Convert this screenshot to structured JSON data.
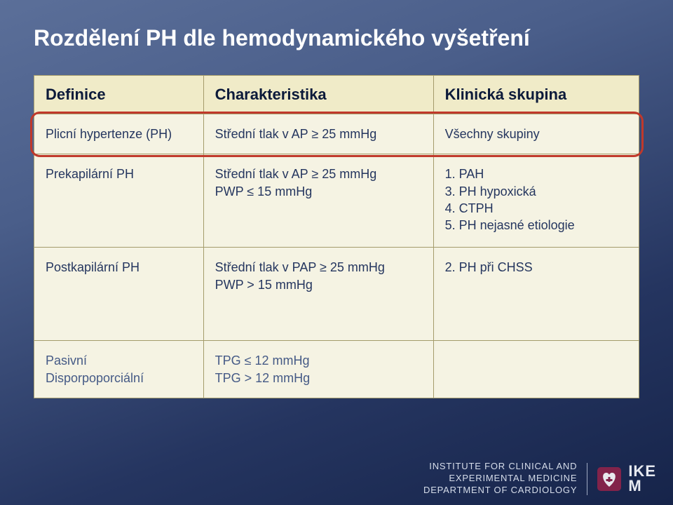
{
  "title": "Rozdělení PH dle hemodynamického vyšetření",
  "headers": [
    "Definice",
    "Charakteristika",
    "Klinická skupina"
  ],
  "rows": [
    {
      "col0": "Plicní hypertenze (PH)",
      "col1": "Střední tlak v AP ≥ 25 mmHg",
      "col2": "Všechny skupiny"
    },
    {
      "col0": "Prekapilární PH",
      "col1": "Střední tlak v AP ≥ 25 mmHg\nPWP ≤ 15 mmHg",
      "col2": "1. PAH\n3. PH hypoxická\n4. CTPH\n5. PH nejasné etiologie"
    },
    {
      "col0": "Postkapilární PH",
      "col1": "Střední tlak v PAP ≥ 25 mmHg\nPWP > 15 mmHg",
      "col2": "2. PH při CHSS"
    },
    {
      "col0": "Pasivní\nDisporpoporciální",
      "col1": "TPG ≤ 12 mmHg\nTPG > 12 mmHg",
      "col2": ""
    }
  ],
  "highlight_row_index": 0,
  "colors": {
    "background_grad_top": "#5b6f99",
    "background_grad_bottom": "#16244a",
    "header_bg": "#f0ebc8",
    "cell_bg": "#f5f3e3",
    "border": "#a49b6b",
    "highlight_border": "#c0392b",
    "text_primary": "#25365f",
    "title_text": "#ffffff"
  },
  "layout": {
    "col_widths_pct": [
      28,
      38,
      34
    ]
  },
  "footer": {
    "line1": "INSTITUTE FOR CLINICAL AND",
    "line2": "EXPERIMENTAL MEDICINE",
    "line3": "DEPARTMENT OF CARDIOLOGY",
    "logo_text_top": "IKE",
    "logo_text_bottom": "M"
  }
}
